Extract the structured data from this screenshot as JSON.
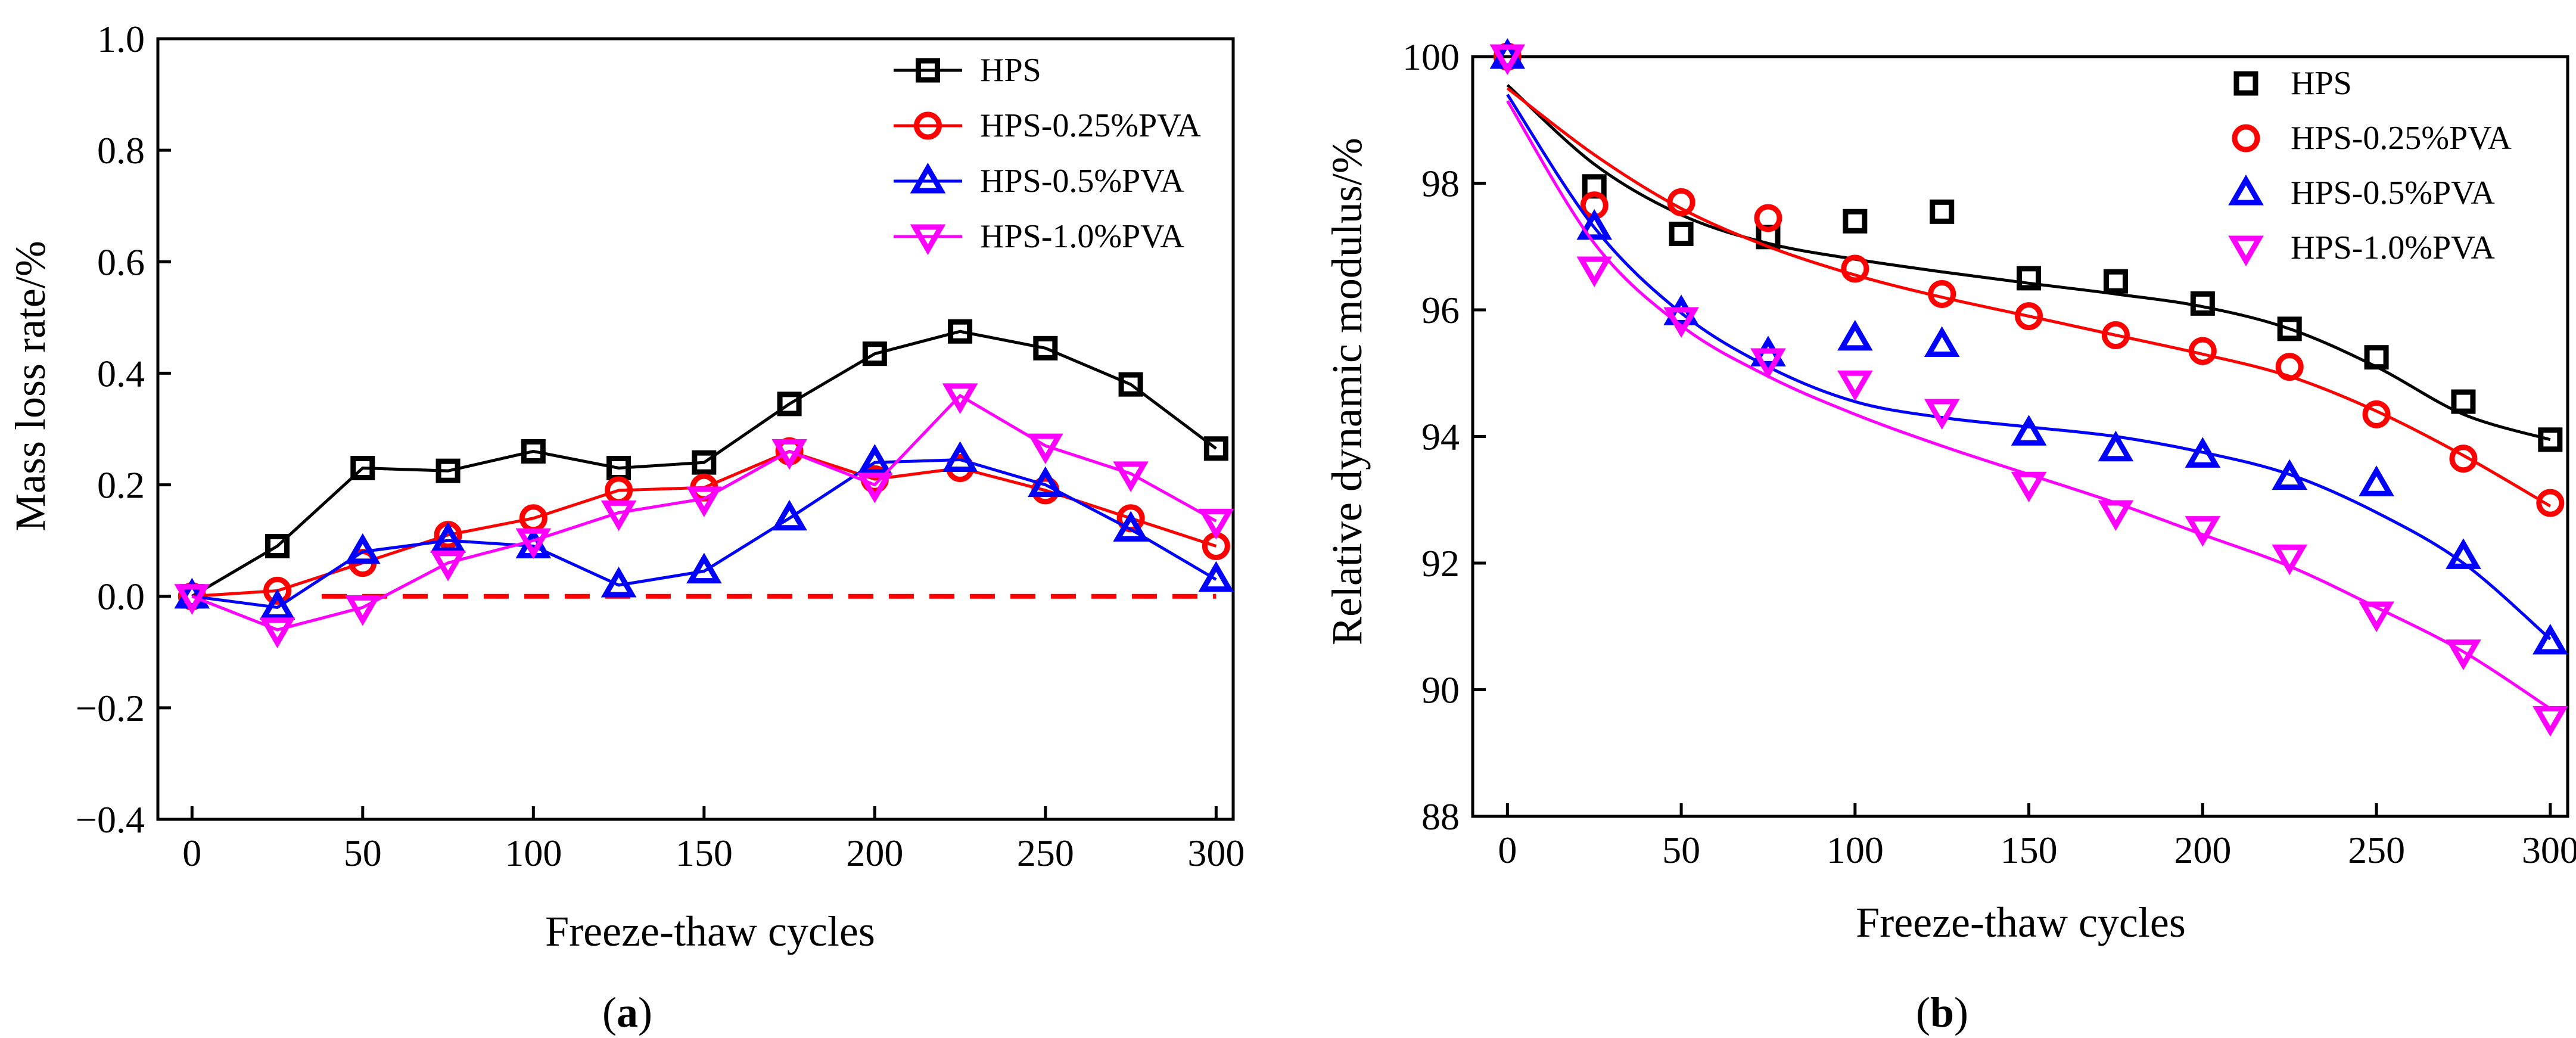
{
  "chart_data": [
    {
      "panel_label": "(a)",
      "panel_letter": "a",
      "type": "line",
      "title": "",
      "xlabel": "Freeze-thaw cycles",
      "ylabel": "Mass loss rate/%",
      "xlim": [
        -10,
        305
      ],
      "ylim": [
        -0.4,
        1.0
      ],
      "xticks": [
        0,
        50,
        100,
        150,
        200,
        250,
        300
      ],
      "yticks": [
        -0.4,
        -0.2,
        0.0,
        0.2,
        0.4,
        0.6,
        0.8,
        1.0
      ],
      "ytick_labels": [
        "−0.4",
        "−0.2",
        "0.0",
        "0.2",
        "0.4",
        "0.6",
        "0.8",
        "1.0"
      ],
      "x": [
        0,
        25,
        50,
        75,
        100,
        125,
        150,
        175,
        200,
        225,
        250,
        275,
        300
      ],
      "reference_line": {
        "y": 0.0,
        "style": "dashed",
        "color": "#ff0000",
        "x_range": [
          38,
          300
        ]
      },
      "legend_position": "top-right",
      "series": [
        {
          "name": "HPS",
          "color": "#000000",
          "marker": "square",
          "values": [
            0.0,
            0.09,
            0.23,
            0.225,
            0.26,
            0.23,
            0.24,
            0.345,
            0.435,
            0.475,
            0.445,
            0.38,
            0.265
          ]
        },
        {
          "name": "HPS-0.25%PVA",
          "color": "#ff0000",
          "marker": "circle",
          "values": [
            0.0,
            0.01,
            0.06,
            0.11,
            0.14,
            0.19,
            0.195,
            0.26,
            0.21,
            0.23,
            0.19,
            0.14,
            0.09
          ]
        },
        {
          "name": "HPS-0.5%PVA",
          "color": "#0000ff",
          "marker": "triangle-up",
          "values": [
            0.0,
            -0.02,
            0.08,
            0.1,
            0.09,
            0.02,
            0.045,
            0.14,
            0.24,
            0.245,
            0.2,
            0.12,
            0.03
          ]
        },
        {
          "name": "HPS-1.0%PVA",
          "color": "#ff00ff",
          "marker": "triangle-down",
          "values": [
            0.0,
            -0.06,
            -0.02,
            0.06,
            0.1,
            0.15,
            0.175,
            0.26,
            0.2,
            0.36,
            0.27,
            0.22,
            0.135
          ]
        }
      ]
    },
    {
      "panel_label": "(b)",
      "panel_letter": "b",
      "type": "scatter",
      "title": "",
      "xlabel": "Freeze-thaw cycles",
      "ylabel": "Relative dynamic modulus/%",
      "xlim": [
        -10,
        305
      ],
      "ylim": [
        88,
        100
      ],
      "xticks": [
        0,
        50,
        100,
        150,
        200,
        250,
        300
      ],
      "yticks": [
        88,
        90,
        92,
        94,
        96,
        98,
        100
      ],
      "ytick_labels": [
        "88",
        "90",
        "92",
        "94",
        "96",
        "98",
        "100"
      ],
      "x": [
        0,
        25,
        50,
        75,
        100,
        125,
        150,
        175,
        200,
        225,
        250,
        275,
        300
      ],
      "legend_position": "top-right",
      "series": [
        {
          "name": "HPS",
          "color": "#000000",
          "marker": "square",
          "values": [
            100.0,
            97.95,
            97.2,
            97.15,
            97.4,
            97.55,
            96.5,
            96.45,
            96.1,
            95.7,
            95.25,
            94.55,
            93.95
          ],
          "fit": [
            99.55,
            98.3,
            97.5,
            97.05,
            96.8,
            96.6,
            96.42,
            96.25,
            96.05,
            95.7,
            95.1,
            94.35,
            93.95
          ]
        },
        {
          "name": "HPS-0.25%PVA",
          "color": "#ff0000",
          "marker": "circle",
          "values": [
            100.0,
            97.65,
            97.7,
            97.45,
            96.65,
            96.25,
            95.9,
            95.6,
            95.35,
            95.1,
            94.35,
            93.65,
            92.95
          ],
          "fit": [
            99.5,
            98.45,
            97.6,
            97.0,
            96.55,
            96.2,
            95.9,
            95.6,
            95.3,
            94.95,
            94.4,
            93.7,
            92.9
          ]
        },
        {
          "name": "HPS-0.5%PVA",
          "color": "#0000ff",
          "marker": "triangle-up",
          "values": [
            100.0,
            97.3,
            95.95,
            95.3,
            95.55,
            95.45,
            94.05,
            93.8,
            93.7,
            93.35,
            93.25,
            92.1,
            90.75
          ],
          "fit": [
            99.4,
            97.3,
            95.95,
            95.1,
            94.55,
            94.3,
            94.15,
            94.0,
            93.75,
            93.4,
            92.8,
            92.0,
            90.8
          ]
        },
        {
          "name": "HPS-1.0%PVA",
          "color": "#ff00ff",
          "marker": "triangle-down",
          "values": [
            100.0,
            96.65,
            95.85,
            95.2,
            94.85,
            94.4,
            93.25,
            92.8,
            92.55,
            92.1,
            91.2,
            90.6,
            89.55
          ],
          "fit": [
            99.3,
            97.05,
            95.75,
            94.95,
            94.35,
            93.85,
            93.4,
            92.95,
            92.45,
            91.95,
            91.3,
            90.6,
            89.7
          ]
        }
      ]
    }
  ]
}
